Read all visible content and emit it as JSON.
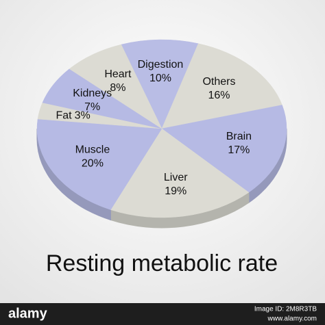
{
  "chart_data": {
    "type": "pie",
    "title": "Resting metabolic rate",
    "categories": [
      "Digestion",
      "Others",
      "Brain",
      "Liver",
      "Muscle",
      "Fat",
      "Kidneys",
      "Heart"
    ],
    "values": [
      10,
      16,
      17,
      19,
      20,
      3,
      7,
      8
    ],
    "value_labels": [
      "10%",
      "16%",
      "17%",
      "19%",
      "20%",
      "3%",
      "7%",
      "8%"
    ],
    "colors": [
      "#b9bde5",
      "#dcdbd3",
      "#b6bae4",
      "#dcdbd3",
      "#b6bae4",
      "#dcdbd3",
      "#b6bae4",
      "#dcdbd3"
    ]
  },
  "footer": {
    "brand": "alamy",
    "image_id": "Image ID: 2M8R3TB",
    "url": "www.alamy.com"
  }
}
